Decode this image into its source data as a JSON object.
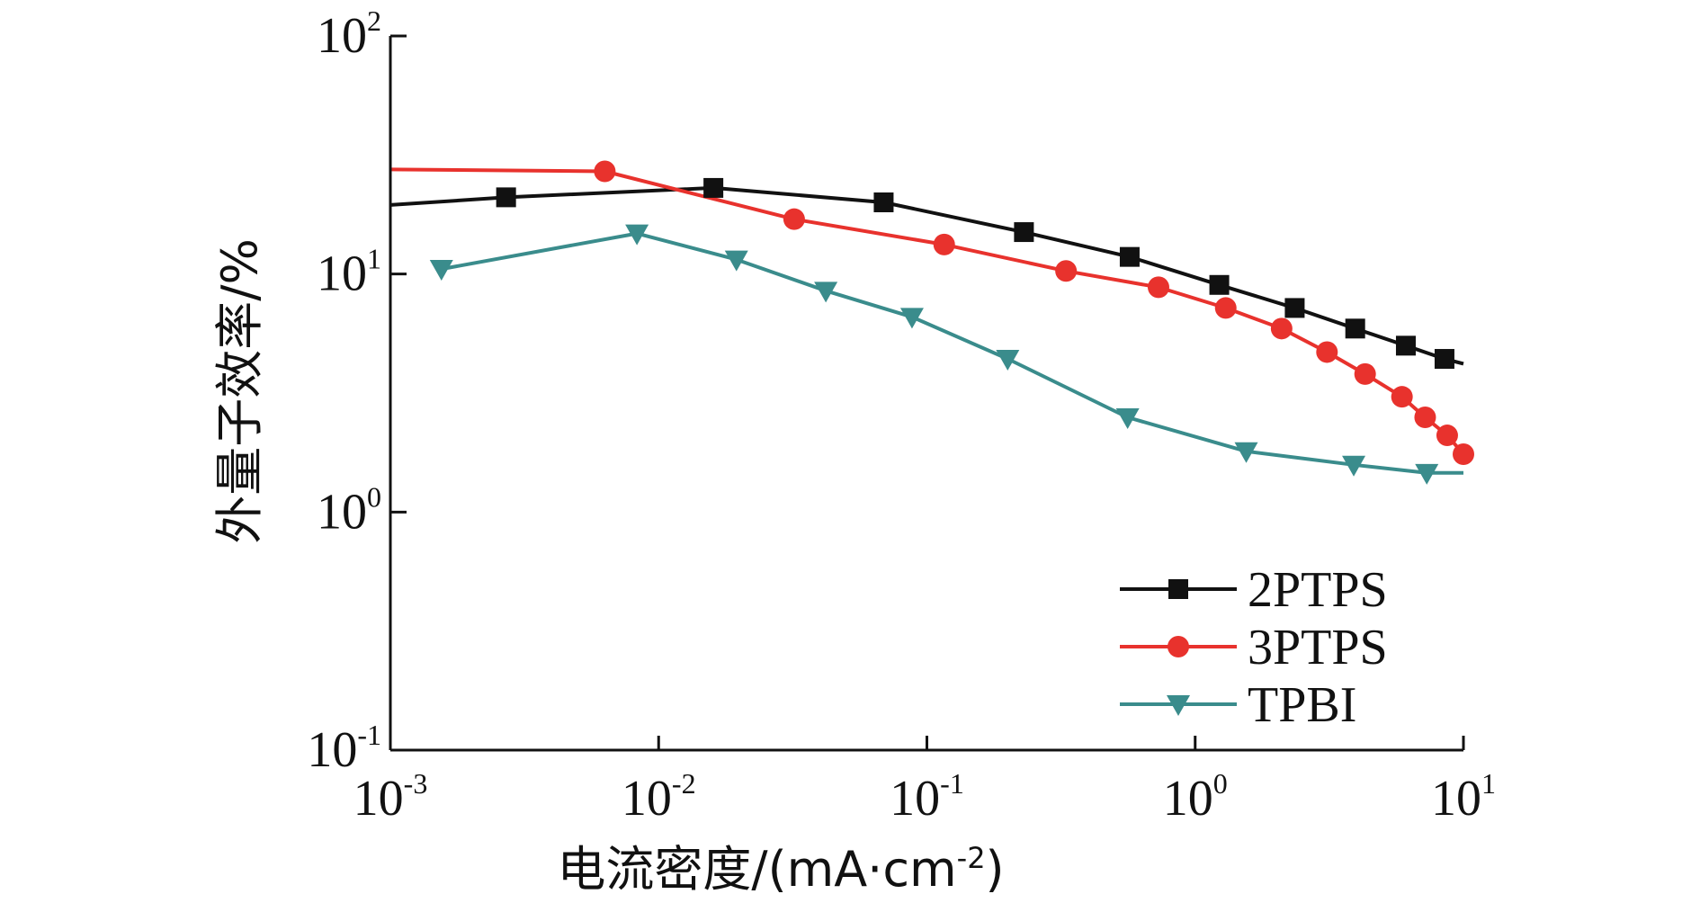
{
  "chart_data": {
    "type": "line",
    "title": "",
    "xlabel": "电流密度/(mA·cm",
    "xlabel_sup": "-2",
    "xlabel_tail": ")",
    "ylabel": "外量子效率/%",
    "xscale": "log",
    "yscale": "log",
    "xlim": [
      0.001,
      10
    ],
    "ylim": [
      0.1,
      100
    ],
    "x_ticks": [
      {
        "base": "10",
        "exp": "-3",
        "value": 0.001
      },
      {
        "base": "10",
        "exp": "-2",
        "value": 0.01
      },
      {
        "base": "10",
        "exp": "-1",
        "value": 0.1
      },
      {
        "base": "10",
        "exp": "0",
        "value": 1
      },
      {
        "base": "10",
        "exp": "1",
        "value": 10
      }
    ],
    "y_ticks": [
      {
        "base": "10",
        "exp": "-1",
        "value": 0.1
      },
      {
        "base": "10",
        "exp": "0",
        "value": 1
      },
      {
        "base": "10",
        "exp": "1",
        "value": 10
      },
      {
        "base": "10",
        "exp": "2",
        "value": 100
      }
    ],
    "legend_position": "bottom-right",
    "series": [
      {
        "name": "2PTPS",
        "color": "#111111",
        "marker": "square",
        "x": [
          0.001,
          0.0027,
          0.016,
          0.069,
          0.23,
          0.57,
          1.23,
          2.35,
          3.95,
          6.1,
          8.5,
          10
        ],
        "y": [
          19.5,
          21.0,
          23.0,
          20.0,
          15.0,
          11.8,
          9.0,
          7.2,
          5.9,
          5.0,
          4.4,
          4.2
        ],
        "marker_indices": [
          1,
          2,
          3,
          4,
          5,
          6,
          7,
          8,
          9,
          10
        ]
      },
      {
        "name": "3PTPS",
        "color": "#e8322d",
        "marker": "circle",
        "x": [
          0.001,
          0.0063,
          0.032,
          0.116,
          0.33,
          0.73,
          1.3,
          2.1,
          3.1,
          4.3,
          5.9,
          7.2,
          8.7,
          10
        ],
        "y": [
          27.5,
          27.0,
          17.0,
          13.3,
          10.3,
          8.8,
          7.2,
          5.9,
          4.7,
          3.8,
          3.05,
          2.5,
          2.1,
          1.75
        ],
        "marker_indices": [
          1,
          2,
          3,
          4,
          5,
          6,
          7,
          8,
          9,
          10,
          11,
          12,
          13
        ]
      },
      {
        "name": "TPBI",
        "color": "#3a8c8c",
        "marker": "triangle-down",
        "x": [
          0.00155,
          0.0083,
          0.0195,
          0.042,
          0.088,
          0.2,
          0.56,
          1.55,
          3.9,
          7.3,
          10
        ],
        "y": [
          10.5,
          14.8,
          11.5,
          8.5,
          6.6,
          4.4,
          2.5,
          1.8,
          1.58,
          1.46,
          1.46
        ],
        "marker_indices": [
          0,
          1,
          2,
          3,
          4,
          5,
          6,
          7,
          8,
          9
        ]
      }
    ]
  }
}
